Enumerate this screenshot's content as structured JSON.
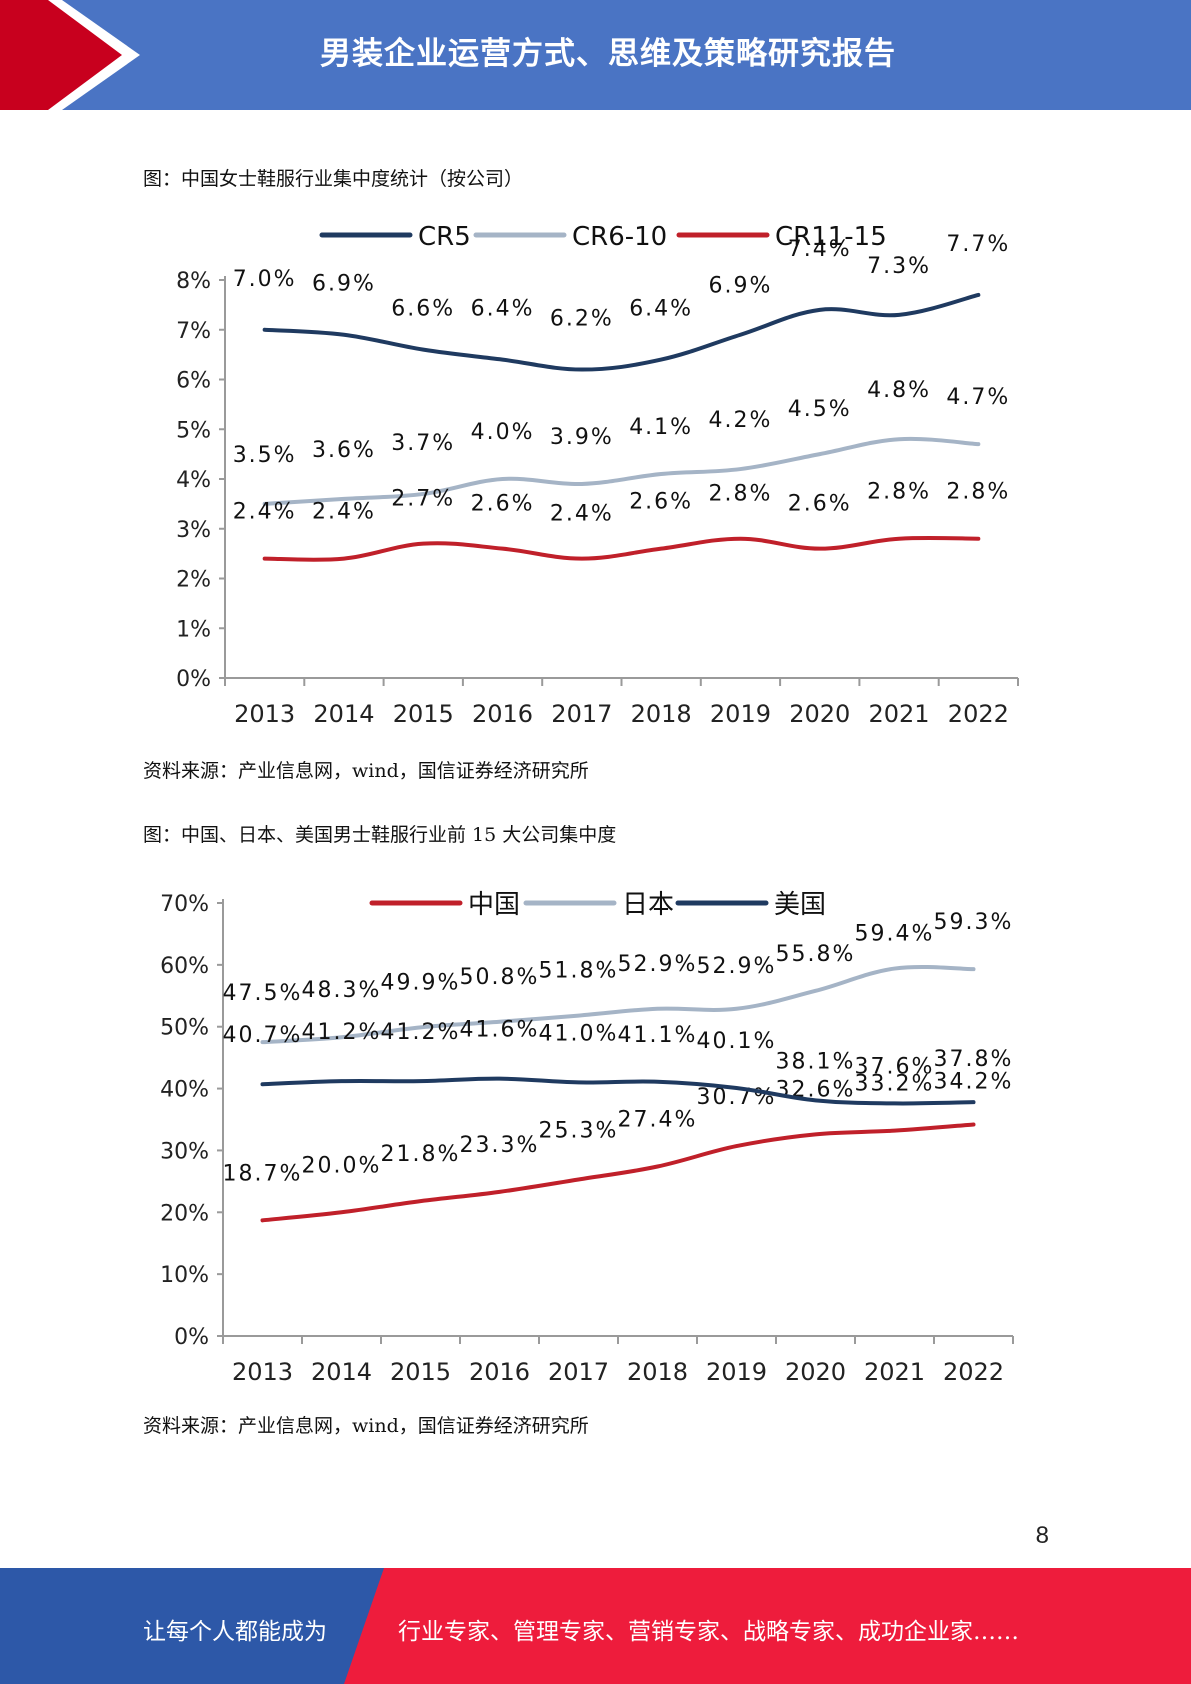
{
  "header": {
    "title": "男装企业运营方式、思维及策略研究报告"
  },
  "figure1": {
    "caption": "图：中国女士鞋服行业集中度统计（按公司）",
    "source": "资料来源：产业信息网，wind，国信证券经济研究所"
  },
  "figure2": {
    "caption": "图：中国、日本、美国男士鞋服行业前 15 大公司集中度",
    "source": "资料来源：产业信息网，wind，国信证券经济研究所"
  },
  "chart_data": [
    {
      "type": "line",
      "title": "",
      "xlabel": "",
      "ylabel": "",
      "categories": [
        "2013",
        "2014",
        "2015",
        "2016",
        "2017",
        "2018",
        "2019",
        "2020",
        "2021",
        "2022"
      ],
      "ylim": [
        0,
        8
      ],
      "yticks": [
        "0%",
        "1%",
        "2%",
        "3%",
        "4%",
        "5%",
        "6%",
        "7%",
        "8%"
      ],
      "legend_position": "top",
      "grid": false,
      "series": [
        {
          "name": "CR5",
          "color": "#1f3a60",
          "values": [
            7.0,
            6.9,
            6.6,
            6.4,
            6.2,
            6.4,
            6.9,
            7.4,
            7.3,
            7.7
          ],
          "labels": [
            "7.0%",
            "6.9%",
            "6.6%",
            "6.4%",
            "6.2%",
            "6.4%",
            "6.9%",
            "7.4%",
            "7.3%",
            "7.7%"
          ]
        },
        {
          "name": "CR6-10",
          "color": "#a5b4c6",
          "values": [
            3.5,
            3.6,
            3.7,
            4.0,
            3.9,
            4.1,
            4.2,
            4.5,
            4.8,
            4.7
          ],
          "labels": [
            "3.5%",
            "3.6%",
            "3.7%",
            "4.0%",
            "3.9%",
            "4.1%",
            "4.2%",
            "4.5%",
            "4.8%",
            "4.7%"
          ]
        },
        {
          "name": "CR11-15",
          "color": "#c0202a",
          "values": [
            2.4,
            2.4,
            2.7,
            2.6,
            2.4,
            2.6,
            2.8,
            2.6,
            2.8,
            2.8
          ],
          "labels": [
            "2.4%",
            "2.4%",
            "2.7%",
            "2.6%",
            "2.4%",
            "2.6%",
            "2.8%",
            "2.6%",
            "2.8%",
            "2.8%"
          ]
        }
      ]
    },
    {
      "type": "line",
      "title": "",
      "xlabel": "",
      "ylabel": "",
      "categories": [
        "2013",
        "2014",
        "2015",
        "2016",
        "2017",
        "2018",
        "2019",
        "2020",
        "2021",
        "2022"
      ],
      "ylim": [
        0,
        70
      ],
      "yticks": [
        "0%",
        "10%",
        "20%",
        "30%",
        "40%",
        "50%",
        "60%",
        "70%"
      ],
      "legend_position": "top",
      "grid": false,
      "series": [
        {
          "name": "中国",
          "color": "#c0202a",
          "values": [
            18.7,
            20.0,
            21.8,
            23.3,
            25.3,
            27.4,
            30.7,
            32.6,
            33.2,
            34.2
          ],
          "labels": [
            "18.7%",
            "20.0%",
            "21.8%",
            "23.3%",
            "25.3%",
            "27.4%",
            "30.7%",
            "32.6%",
            "33.2%",
            "34.2%"
          ]
        },
        {
          "name": "日本",
          "color": "#a5b4c6",
          "values": [
            47.5,
            48.3,
            49.9,
            50.8,
            51.8,
            52.9,
            52.9,
            55.8,
            59.4,
            59.3
          ],
          "labels": [
            "47.5%",
            "48.3%",
            "49.9%",
            "50.8%",
            "51.8%",
            "52.9%",
            "52.9%",
            "55.8%",
            "59.4%",
            "59.3%"
          ]
        },
        {
          "name": "美国",
          "color": "#1f3a60",
          "values": [
            40.7,
            41.2,
            41.2,
            41.6,
            41.0,
            41.1,
            40.1,
            38.1,
            37.6,
            37.8
          ],
          "labels": [
            "40.7%",
            "41.2%",
            "41.2%",
            "41.6%",
            "41.0%",
            "41.1%",
            "40.1%",
            "38.1%",
            "37.6%",
            "37.8%"
          ]
        }
      ]
    }
  ],
  "page_number": "8",
  "footer": {
    "left_text": "让每个人都能成为",
    "right_text": "行业专家、管理专家、营销专家、战略专家、成功企业家……"
  }
}
